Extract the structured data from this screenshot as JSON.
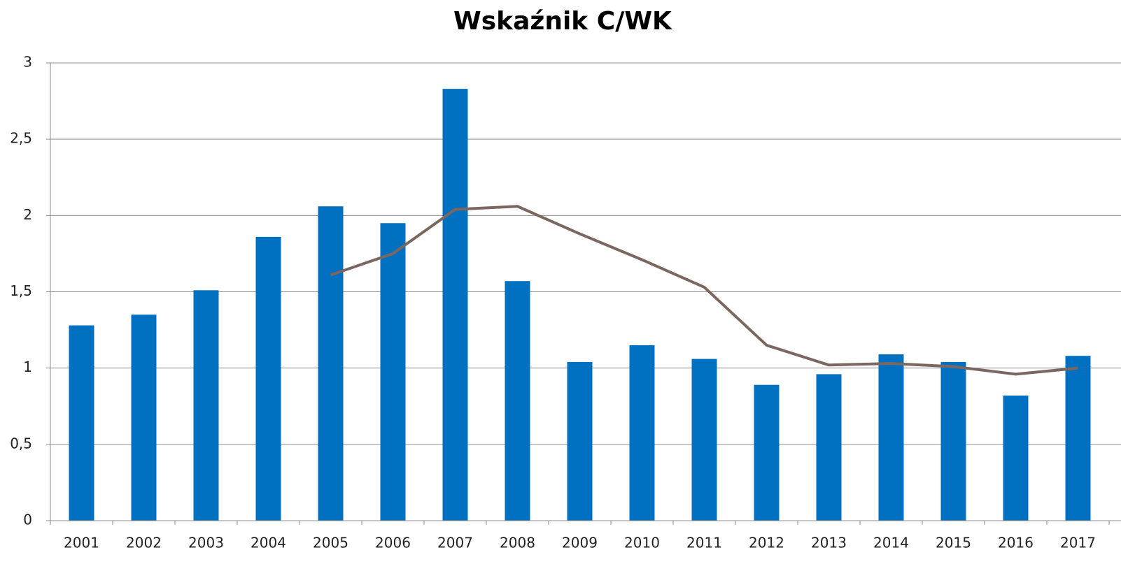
{
  "chart_data": {
    "type": "bar",
    "title": "Wskaźnik C/WK",
    "categories": [
      "2001",
      "2002",
      "2003",
      "2004",
      "2005",
      "2006",
      "2007",
      "2008",
      "2009",
      "2010",
      "2011",
      "2012",
      "2013",
      "2014",
      "2015",
      "2016",
      "2017"
    ],
    "series": [
      {
        "type": "bar",
        "color": "#0070c0",
        "values": [
          1.28,
          1.35,
          1.51,
          1.86,
          2.06,
          1.95,
          2.83,
          1.57,
          1.04,
          1.15,
          1.06,
          0.89,
          0.96,
          1.09,
          1.04,
          0.82,
          1.08
        ]
      },
      {
        "type": "line",
        "color": "#7a6760",
        "values": [
          null,
          null,
          null,
          null,
          1.61,
          1.75,
          2.04,
          2.06,
          1.88,
          1.71,
          1.53,
          1.15,
          1.02,
          1.03,
          1.01,
          0.96,
          1.0
        ]
      }
    ],
    "ylim": [
      0,
      3
    ],
    "yticks": [
      0,
      {
        "value": 0.5,
        "label": "0,5"
      },
      1,
      {
        "value": 1.5,
        "label": "1,5"
      },
      2,
      {
        "value": 2.5,
        "label": "2,5"
      },
      3
    ],
    "grid": true
  }
}
